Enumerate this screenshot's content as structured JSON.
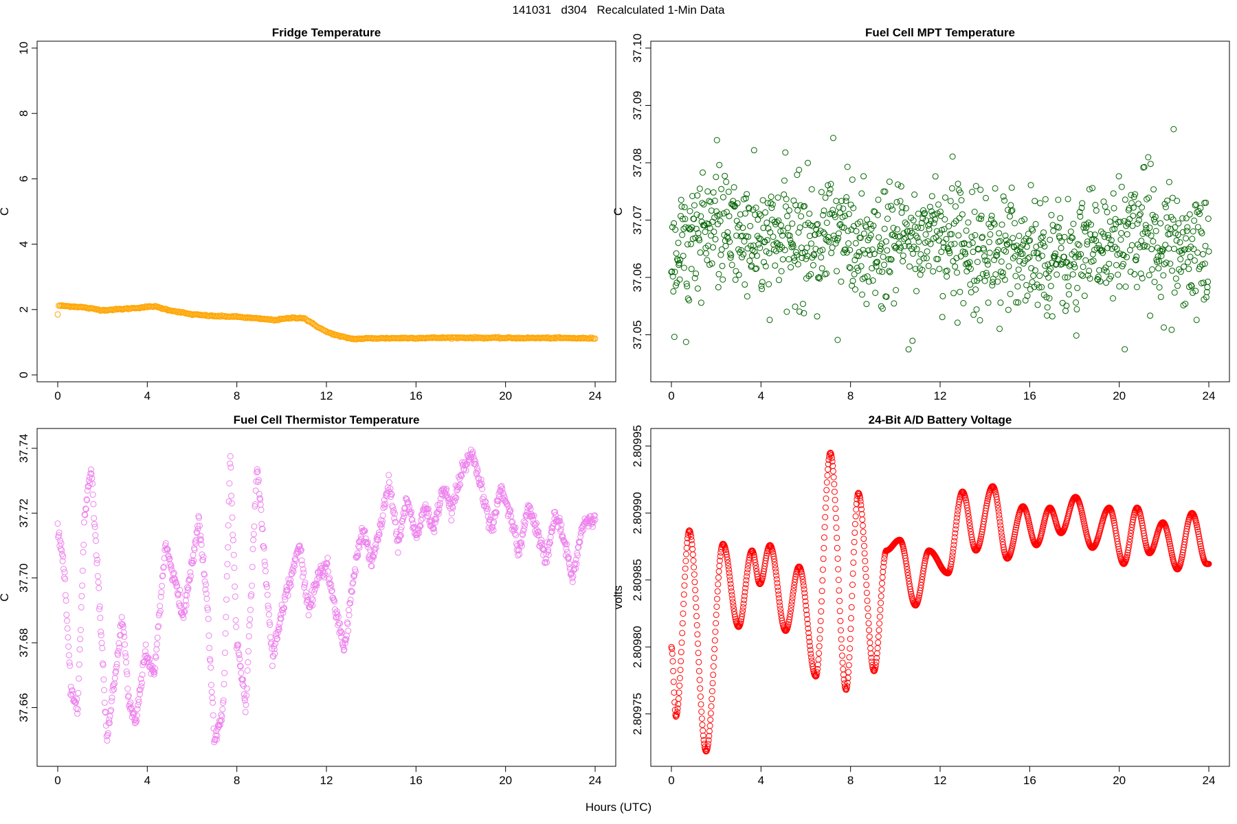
{
  "figure": {
    "title": "141031   d304   Recalculated 1-Min Data",
    "xlabel": "Hours (UTC)"
  },
  "chart_data": [
    {
      "type": "scatter",
      "title": "Fridge Temperature",
      "xlabel": "Hours (UTC)",
      "ylabel": "C",
      "color": "#ffa500",
      "xlim": [
        0,
        24
      ],
      "ylim": [
        0,
        10
      ],
      "xticks": [
        "0",
        "4",
        "8",
        "12",
        "16",
        "20",
        "24"
      ],
      "yticks": [
        "0",
        "2",
        "4",
        "6",
        "8",
        "10"
      ],
      "series": [
        {
          "name": "fridge",
          "x": [
            0,
            0.05,
            1,
            2,
            3,
            4,
            4.3,
            5,
            6,
            7,
            8,
            9,
            9.7,
            10.5,
            11,
            11.3,
            12,
            12.6,
            13.2,
            14,
            16,
            18,
            20,
            22,
            24
          ],
          "y": [
            1.85,
            2.12,
            2.08,
            1.98,
            2.02,
            2.08,
            2.1,
            1.98,
            1.85,
            1.8,
            1.78,
            1.72,
            1.68,
            1.75,
            1.74,
            1.6,
            1.32,
            1.18,
            1.1,
            1.12,
            1.13,
            1.14,
            1.13,
            1.13,
            1.12
          ]
        }
      ]
    },
    {
      "type": "scatter",
      "title": "Fuel Cell MPT Temperature",
      "xlabel": "Hours (UTC)",
      "ylabel": "C",
      "color": "#006400",
      "xlim": [
        0,
        24
      ],
      "ylim": [
        37.043,
        37.1
      ],
      "xticks": [
        "0",
        "4",
        "8",
        "12",
        "16",
        "20",
        "24"
      ],
      "yticks": [
        "37.05",
        "37.06",
        "37.07",
        "37.08",
        "37.09",
        "37.10"
      ],
      "series": [
        {
          "name": "mpt",
          "x": [
            0,
            1,
            2,
            3,
            4,
            5,
            6,
            7,
            7.5,
            8,
            9,
            10,
            11,
            11.8,
            12,
            13,
            14,
            15,
            16,
            17,
            18,
            19,
            20,
            21,
            22,
            23,
            24
          ],
          "y": [
            37.063,
            37.068,
            37.069,
            37.067,
            37.066,
            37.067,
            37.066,
            37.068,
            37.07,
            37.065,
            37.063,
            37.067,
            37.066,
            37.07,
            37.067,
            37.066,
            37.065,
            37.064,
            37.065,
            37.064,
            37.063,
            37.065,
            37.067,
            37.069,
            37.066,
            37.065,
            37.066
          ]
        }
      ]
    },
    {
      "type": "scatter",
      "title": "Fuel Cell Thermistor Temperature",
      "xlabel": "Hours (UTC)",
      "ylabel": "C",
      "color": "#ee82ee",
      "xlim": [
        0,
        24
      ],
      "ylim": [
        37.644,
        37.744
      ],
      "xticks": [
        "0",
        "4",
        "8",
        "12",
        "16",
        "20",
        "24"
      ],
      "yticks": [
        "37.66",
        "37.68",
        "37.70",
        "37.72",
        "37.74"
      ],
      "series": [
        {
          "name": "thermistor",
          "x": [
            0,
            0.3,
            0.6,
            0.9,
            1.2,
            1.5,
            1.8,
            2.2,
            2.6,
            2.9,
            3.2,
            3.5,
            3.9,
            4.3,
            4.8,
            5.2,
            5.6,
            6,
            6.3,
            6.7,
            7,
            7.4,
            7.7,
            8,
            8.4,
            8.9,
            9.3,
            9.6,
            10,
            10.4,
            10.8,
            11.2,
            11.6,
            12,
            12.4,
            12.8,
            13.2,
            13.6,
            14,
            14.4,
            14.8,
            15.2,
            15.6,
            16,
            16.4,
            16.8,
            17.2,
            17.6,
            18,
            18.5,
            19,
            19.4,
            19.8,
            20.2,
            20.6,
            21,
            21.4,
            21.8,
            22.2,
            22.6,
            23,
            23.4,
            23.8
          ],
          "y": [
            37.716,
            37.702,
            37.664,
            37.66,
            37.72,
            37.734,
            37.7,
            37.65,
            37.672,
            37.688,
            37.66,
            37.656,
            37.676,
            37.67,
            37.71,
            37.7,
            37.688,
            37.705,
            37.718,
            37.69,
            37.65,
            37.66,
            37.738,
            37.68,
            37.66,
            37.735,
            37.7,
            37.675,
            37.69,
            37.7,
            37.71,
            37.69,
            37.7,
            37.704,
            37.69,
            37.678,
            37.7,
            37.715,
            37.705,
            37.715,
            37.73,
            37.71,
            37.725,
            37.712,
            37.722,
            37.715,
            37.728,
            37.72,
            37.732,
            37.738,
            37.725,
            37.715,
            37.728,
            37.72,
            37.708,
            37.722,
            37.715,
            37.705,
            37.72,
            37.712,
            37.7,
            37.715,
            37.718
          ]
        }
      ]
    },
    {
      "type": "scatter",
      "title": "24-Bit A/D Battery Voltage",
      "xlabel": "Hours (UTC)",
      "ylabel": "volts",
      "color": "#ff0000",
      "xlim": [
        0,
        24
      ],
      "ylim": [
        2.809716,
        2.809958
      ],
      "xticks": [
        "0",
        "4",
        "8",
        "12",
        "16",
        "20",
        "24"
      ],
      "yticks": [
        "2.80975",
        "2.80980",
        "2.80985",
        "2.80990",
        "2.80995"
      ],
      "series": [
        {
          "name": "battery",
          "x": [
            0,
            0.2,
            0.8,
            1.55,
            2.3,
            3.0,
            3.6,
            3.95,
            4.4,
            5.1,
            5.7,
            6.45,
            7.1,
            7.8,
            8.35,
            9.05,
            9.6,
            10.2,
            10.9,
            11.5,
            12.35,
            13.0,
            13.6,
            14.35,
            15.0,
            15.7,
            16.3,
            16.9,
            17.4,
            18.05,
            18.8,
            19.55,
            20.2,
            20.8,
            21.35,
            21.95,
            22.6,
            23.25,
            23.9
          ],
          "y": [
            2.8098,
            2.809748,
            2.809887,
            2.809722,
            2.809877,
            2.809815,
            2.809872,
            2.809847,
            2.809876,
            2.809812,
            2.80986,
            2.809778,
            2.809945,
            2.809768,
            2.809915,
            2.809782,
            2.809872,
            2.80988,
            2.809831,
            2.809872,
            2.809855,
            2.809916,
            2.809872,
            2.80992,
            2.809866,
            2.809905,
            2.809876,
            2.809904,
            2.809885,
            2.809912,
            2.809874,
            2.809904,
            2.809862,
            2.809904,
            2.80987,
            2.809893,
            2.809858,
            2.8099,
            2.809862
          ]
        }
      ]
    }
  ]
}
